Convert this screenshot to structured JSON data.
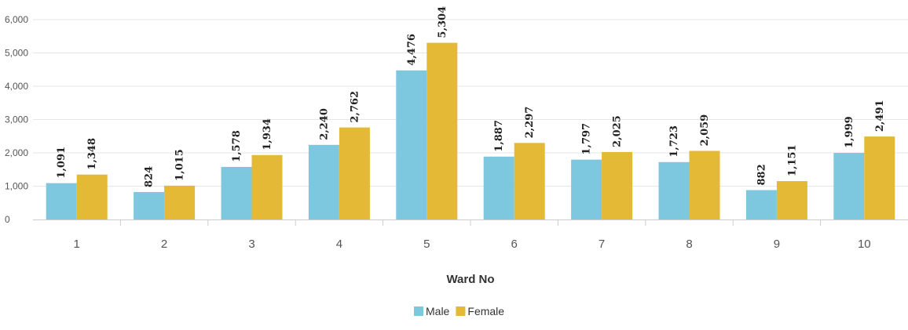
{
  "chart_data": {
    "type": "bar",
    "title": "",
    "xlabel": "Ward No",
    "ylabel": "",
    "categories": [
      "1",
      "2",
      "3",
      "4",
      "5",
      "6",
      "7",
      "8",
      "9",
      "10"
    ],
    "ylim": [
      0,
      6000
    ],
    "yticks": [
      0,
      1000,
      2000,
      3000,
      4000,
      5000,
      6000
    ],
    "ytick_labels": [
      "0",
      "1,000",
      "2,000",
      "3,000",
      "4,000",
      "5,000",
      "6,000"
    ],
    "grid": true,
    "legend_position": "bottom-center",
    "series": [
      {
        "name": "Male",
        "color": "#7ec8df",
        "values": [
          1091,
          824,
          1578,
          2240,
          4476,
          1887,
          1797,
          1723,
          882,
          1999
        ],
        "labels": [
          "1,091",
          "824",
          "1,578",
          "2,240",
          "4,476",
          "1,887",
          "1,797",
          "1,723",
          "882",
          "1,999"
        ]
      },
      {
        "name": "Female",
        "color": "#e3b935",
        "values": [
          1348,
          1015,
          1934,
          2762,
          5304,
          2297,
          2025,
          2059,
          1151,
          2491
        ],
        "labels": [
          "1,348",
          "1,015",
          "1,934",
          "2,762",
          "5,304",
          "2,297",
          "2,025",
          "2,059",
          "1,151",
          "2,491"
        ]
      }
    ]
  }
}
